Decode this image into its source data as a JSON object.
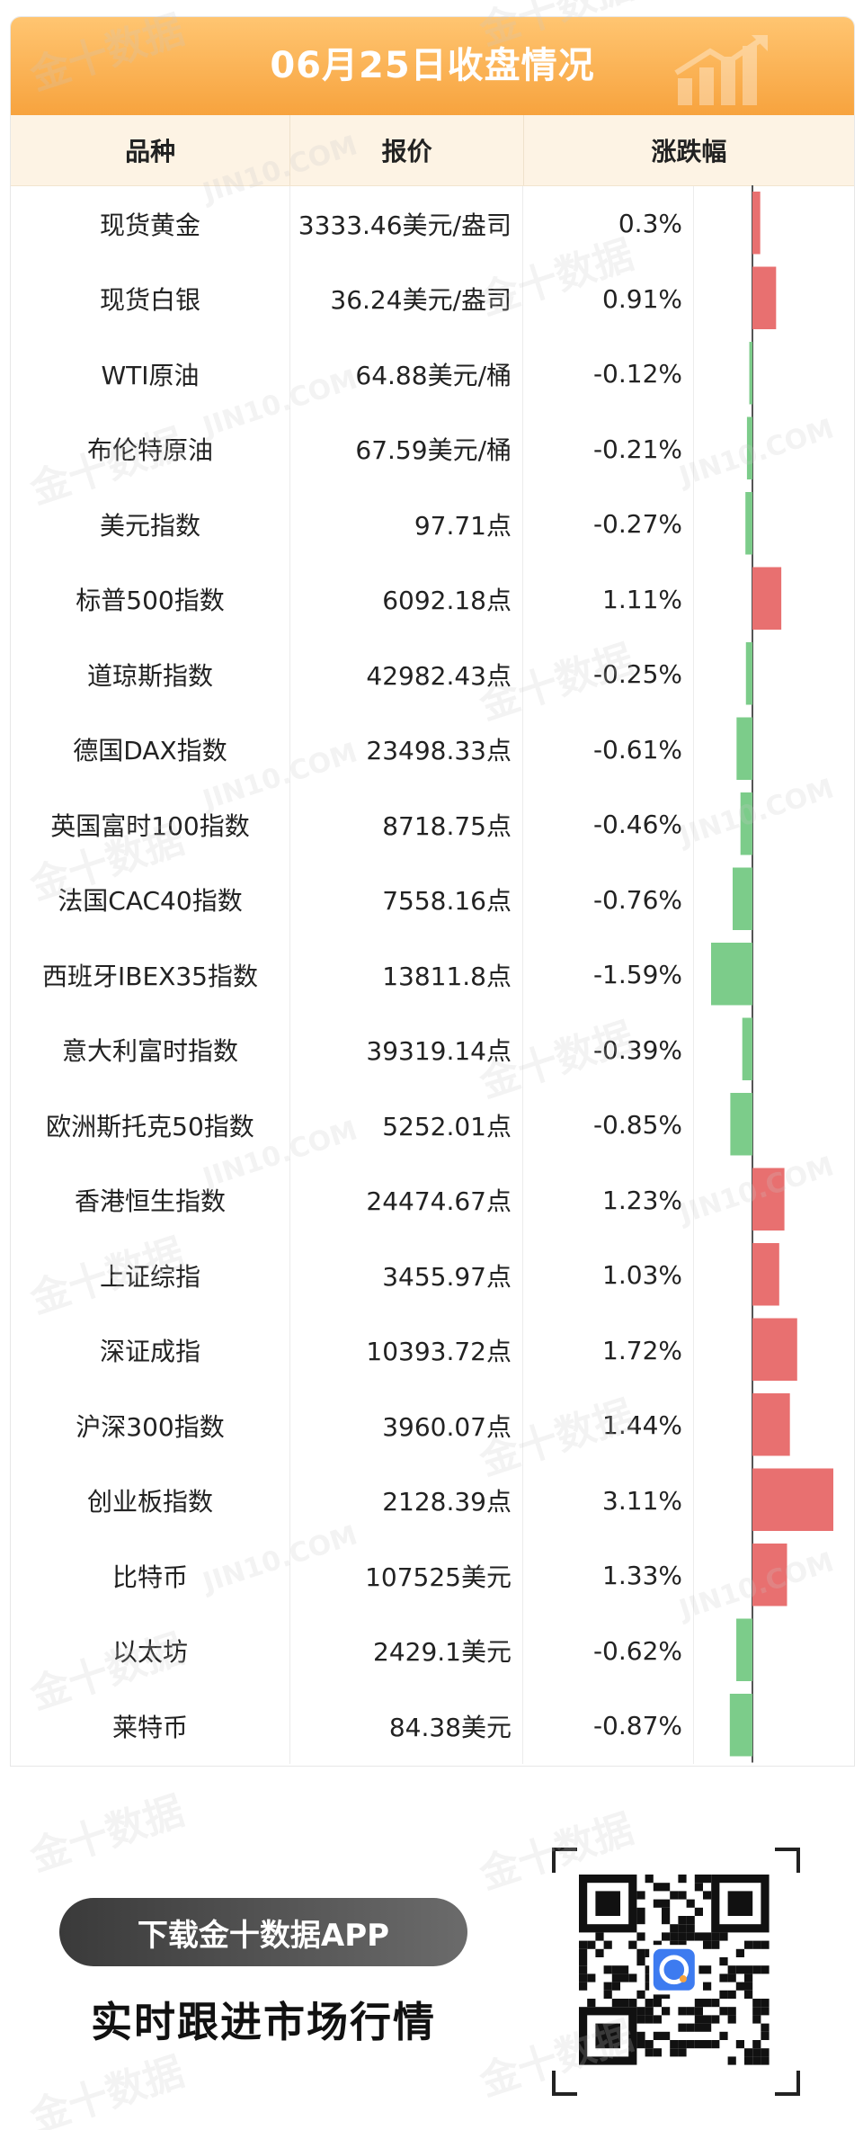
{
  "title": "06月25日收盘情况",
  "headers": {
    "name": "品种",
    "price": "报价",
    "change": "涨跌幅"
  },
  "watermark": {
    "brand": "金十数据",
    "site": "JIN10.COM"
  },
  "colors": {
    "up": "#e87070",
    "down": "#7ccc8a",
    "title_bg": "#f7a33e",
    "header_bg": "#fdf3e4"
  },
  "chart_data": {
    "type": "table",
    "columns": [
      "品种",
      "报价",
      "涨跌幅"
    ],
    "rows": [
      {
        "name": "现货黄金",
        "price": "3333.46美元/盎司",
        "change_label": "0.3%",
        "change": 0.3
      },
      {
        "name": "现货白银",
        "price": "36.24美元/盎司",
        "change_label": "0.91%",
        "change": 0.91
      },
      {
        "name": "WTI原油",
        "price": "64.88美元/桶",
        "change_label": "-0.12%",
        "change": -0.12
      },
      {
        "name": "布伦特原油",
        "price": "67.59美元/桶",
        "change_label": "-0.21%",
        "change": -0.21
      },
      {
        "name": "美元指数",
        "price": "97.71点",
        "change_label": "-0.27%",
        "change": -0.27
      },
      {
        "name": "标普500指数",
        "price": "6092.18点",
        "change_label": "1.11%",
        "change": 1.11
      },
      {
        "name": "道琼斯指数",
        "price": "42982.43点",
        "change_label": "-0.25%",
        "change": -0.25
      },
      {
        "name": "德国DAX指数",
        "price": "23498.33点",
        "change_label": "-0.61%",
        "change": -0.61
      },
      {
        "name": "英国富时100指数",
        "price": "8718.75点",
        "change_label": "-0.46%",
        "change": -0.46
      },
      {
        "name": "法国CAC40指数",
        "price": "7558.16点",
        "change_label": "-0.76%",
        "change": -0.76
      },
      {
        "name": "西班牙IBEX35指数",
        "price": "13811.8点",
        "change_label": "-1.59%",
        "change": -1.59
      },
      {
        "name": "意大利富时指数",
        "price": "39319.14点",
        "change_label": "-0.39%",
        "change": -0.39
      },
      {
        "name": "欧洲斯托克50指数",
        "price": "5252.01点",
        "change_label": "-0.85%",
        "change": -0.85
      },
      {
        "name": "香港恒生指数",
        "price": "24474.67点",
        "change_label": "1.23%",
        "change": 1.23
      },
      {
        "name": "上证综指",
        "price": "3455.97点",
        "change_label": "1.03%",
        "change": 1.03
      },
      {
        "name": "深证成指",
        "price": "10393.72点",
        "change_label": "1.72%",
        "change": 1.72
      },
      {
        "name": "沪深300指数",
        "price": "3960.07点",
        "change_label": "1.44%",
        "change": 1.44
      },
      {
        "name": "创业板指数",
        "price": "2128.39点",
        "change_label": "3.11%",
        "change": 3.11
      },
      {
        "name": "比特币",
        "price": "107525美元",
        "change_label": "1.33%",
        "change": 1.33
      },
      {
        "name": "以太坊",
        "price": "2429.1美元",
        "change_label": "-0.62%",
        "change": -0.62
      },
      {
        "name": "莱特币",
        "price": "84.38美元",
        "change_label": "-0.87%",
        "change": -0.87
      }
    ]
  },
  "footer": {
    "download_label": "下载金十数据APP",
    "slogan": "实时跟进市场行情",
    "qr_icon": "qr-code-icon"
  }
}
